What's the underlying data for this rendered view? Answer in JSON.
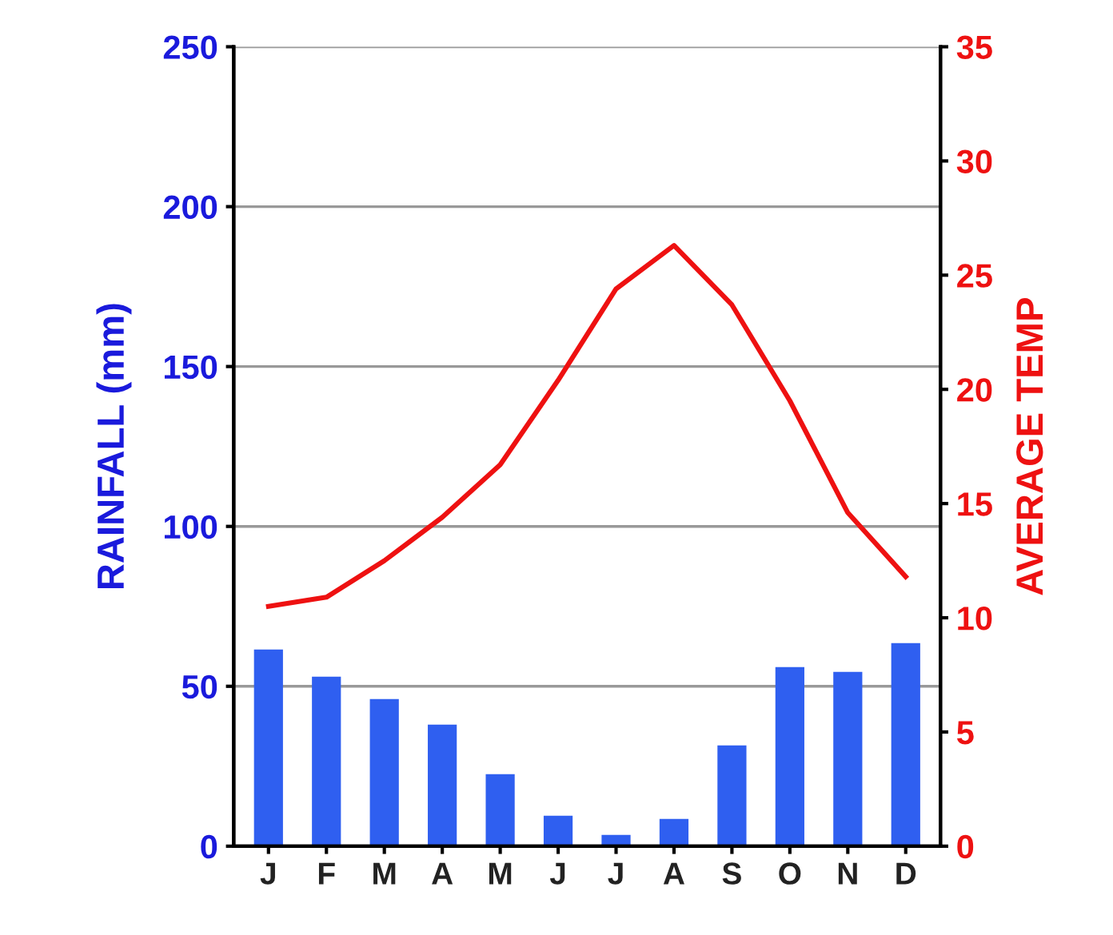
{
  "chart_data": {
    "type": "bar",
    "ylabel": "RAINFALL (mm)",
    "y2label": "AVERAGE TEMP",
    "categories": [
      "J",
      "F",
      "M",
      "A",
      "M",
      "J",
      "J",
      "A",
      "S",
      "O",
      "N",
      "D"
    ],
    "series": [
      {
        "color": "#2f5ff0",
        "values": [
          61.5,
          53,
          46,
          38,
          22.5,
          9.5,
          3.5,
          8.5,
          31.5,
          56,
          54.5,
          63.5
        ]
      },
      {
        "type": "line",
        "axis": "y2",
        "color": "#ee1111",
        "values": [
          10.5,
          10.9,
          12.5,
          14.4,
          16.7,
          20.4,
          24.4,
          26.3,
          23.7,
          19.5,
          14.6,
          11.8
        ]
      }
    ],
    "ylim": [
      0,
      250
    ],
    "yticks": [
      0,
      50,
      100,
      150,
      200,
      250
    ],
    "y2lim": [
      0,
      35
    ],
    "y2ticks": [
      0,
      5,
      10,
      15,
      20,
      25,
      30,
      35
    ],
    "grid": "y",
    "legend": false
  }
}
